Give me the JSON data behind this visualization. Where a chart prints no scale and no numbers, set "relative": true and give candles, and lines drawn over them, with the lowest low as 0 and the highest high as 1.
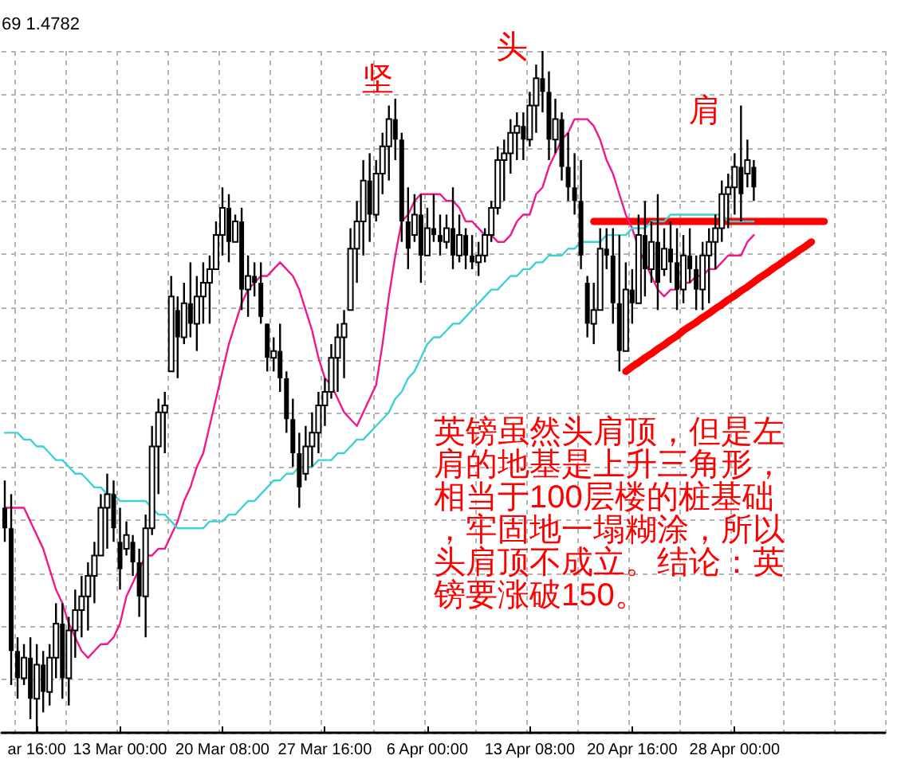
{
  "chart_data": {
    "type": "candlestick",
    "relative": true,
    "grid": true,
    "marker": "none",
    "color": "#000000",
    "annotations": [
      "69 1.4782",
      "坚",
      "头",
      "肩",
      "英镑虽然头肩顶，但是左肩的地基是上升三角形，相当于100层楼的桩基础，牢固地一塌糊涂，所以头肩顶不成立。结论：英镑要涨破150。"
    ],
    "categories": [
      null,
      null,
      null,
      null,
      null,
      "ar 16:00",
      null,
      null,
      null,
      null,
      null,
      null,
      null,
      null,
      null,
      null,
      null,
      null,
      "13 Mar 00:00",
      null,
      null,
      null,
      null,
      null,
      null,
      null,
      null,
      null,
      null,
      null,
      null,
      null,
      null,
      null,
      "20 Mar 08:00",
      null,
      null,
      null,
      null,
      null,
      null,
      null,
      null,
      null,
      null,
      null,
      null,
      null,
      null,
      null,
      "27 Mar 16:00",
      null,
      null,
      null,
      null,
      null,
      null,
      null,
      null,
      null,
      null,
      null,
      null,
      null,
      null,
      null,
      "6 Apr 00:00",
      null,
      null,
      null,
      null,
      null,
      null,
      null,
      null,
      null,
      null,
      null,
      null,
      null,
      null,
      null,
      "13 Apr 08:00",
      null,
      null,
      null,
      null,
      null,
      null,
      null,
      null,
      null,
      null,
      null,
      null,
      null,
      null,
      null,
      "20 Apr 16:00",
      null,
      null,
      null,
      null,
      null,
      null,
      null,
      null,
      null,
      null,
      null,
      null,
      null,
      null,
      null,
      "28 Apr 00:00",
      null,
      null,
      null,
      null,
      null,
      null,
      null,
      null,
      null,
      null,
      null,
      null,
      null,
      null,
      null,
      null,
      null,
      null,
      null,
      null,
      null,
      null,
      null
    ],
    "ohlc": [
      [
        0.33,
        0.37,
        0.28,
        0.3
      ],
      [
        0.3,
        0.35,
        0.07,
        0.12
      ],
      [
        0.12,
        0.14,
        0.05,
        0.08
      ],
      [
        0.08,
        0.13,
        0.07,
        0.11
      ],
      [
        0.11,
        0.14,
        0.02,
        0.05
      ],
      [
        0.05,
        0.13,
        0.0,
        0.1
      ],
      [
        0.1,
        0.12,
        0.03,
        0.06
      ],
      [
        0.06,
        0.13,
        0.04,
        0.11
      ],
      [
        0.11,
        0.19,
        0.08,
        0.16
      ],
      [
        0.16,
        0.19,
        0.05,
        0.08
      ],
      [
        0.08,
        0.17,
        0.04,
        0.15
      ],
      [
        0.15,
        0.21,
        0.11,
        0.18
      ],
      [
        0.18,
        0.23,
        0.14,
        0.2
      ],
      [
        0.2,
        0.25,
        0.15,
        0.23
      ],
      [
        0.23,
        0.28,
        0.19,
        0.26
      ],
      [
        0.26,
        0.35,
        0.26,
        0.33
      ],
      [
        0.33,
        0.38,
        0.27,
        0.35
      ],
      [
        0.35,
        0.37,
        0.28,
        0.3
      ],
      [
        0.28,
        0.33,
        0.21,
        0.24
      ],
      [
        0.27,
        0.31,
        0.26,
        0.29
      ],
      [
        0.28,
        0.29,
        0.23,
        0.25
      ],
      [
        0.25,
        0.27,
        0.17,
        0.2
      ],
      [
        0.2,
        0.32,
        0.14,
        0.3
      ],
      [
        0.3,
        0.45,
        0.29,
        0.42
      ],
      [
        0.42,
        0.49,
        0.35,
        0.47
      ],
      [
        0.47,
        0.5,
        0.41,
        0.48
      ],
      [
        0.53,
        0.67,
        0.53,
        0.64
      ],
      [
        0.62,
        0.64,
        0.52,
        0.58
      ],
      [
        0.58,
        0.66,
        0.57,
        0.63
      ],
      [
        0.63,
        0.69,
        0.58,
        0.6
      ],
      [
        0.6,
        0.67,
        0.56,
        0.64
      ],
      [
        0.64,
        0.69,
        0.6,
        0.66
      ],
      [
        0.66,
        0.7,
        0.6,
        0.68
      ],
      [
        0.68,
        0.75,
        0.68,
        0.73
      ],
      [
        0.73,
        0.8,
        0.7,
        0.77
      ],
      [
        0.77,
        0.79,
        0.69,
        0.72
      ],
      [
        0.72,
        0.76,
        0.72,
        0.75
      ],
      [
        0.75,
        0.77,
        0.62,
        0.65
      ],
      [
        0.65,
        0.7,
        0.61,
        0.67
      ],
      [
        0.67,
        0.69,
        0.64,
        0.66
      ],
      [
        0.66,
        0.69,
        0.6,
        0.61
      ],
      [
        0.6,
        0.6,
        0.53,
        0.55
      ],
      [
        0.55,
        0.58,
        0.53,
        0.56
      ],
      [
        0.56,
        0.6,
        0.5,
        0.52
      ],
      [
        0.52,
        0.53,
        0.44,
        0.46
      ],
      [
        0.46,
        0.49,
        0.39,
        0.41
      ],
      [
        0.41,
        0.44,
        0.33,
        0.36
      ],
      [
        0.38,
        0.45,
        0.37,
        0.42
      ],
      [
        0.42,
        0.47,
        0.39,
        0.44
      ],
      [
        0.44,
        0.5,
        0.41,
        0.48
      ],
      [
        0.48,
        0.52,
        0.45,
        0.5
      ],
      [
        0.5,
        0.57,
        0.49,
        0.55
      ],
      [
        0.55,
        0.6,
        0.5,
        0.58
      ],
      [
        0.58,
        0.62,
        0.52,
        0.6
      ],
      [
        0.62,
        0.74,
        0.62,
        0.71
      ],
      [
        0.71,
        0.78,
        0.66,
        0.75
      ],
      [
        0.75,
        0.84,
        0.7,
        0.81
      ],
      [
        0.81,
        0.85,
        0.72,
        0.76
      ],
      [
        0.76,
        0.84,
        0.75,
        0.82
      ],
      [
        0.82,
        0.88,
        0.79,
        0.86
      ],
      [
        0.86,
        0.92,
        0.81,
        0.9
      ],
      [
        0.9,
        0.93,
        0.84,
        0.87
      ],
      [
        0.87,
        0.88,
        0.72,
        0.75
      ],
      [
        0.75,
        0.8,
        0.68,
        0.71
      ],
      [
        0.73,
        0.79,
        0.72,
        0.76
      ],
      [
        0.76,
        0.79,
        0.66,
        0.7
      ],
      [
        0.7,
        0.77,
        0.7,
        0.74
      ],
      [
        0.74,
        0.79,
        0.72,
        0.73
      ],
      [
        0.73,
        0.76,
        0.7,
        0.72
      ],
      [
        0.72,
        0.76,
        0.71,
        0.74
      ],
      [
        0.74,
        0.8,
        0.68,
        0.7
      ],
      [
        0.7,
        0.76,
        0.69,
        0.73
      ],
      [
        0.73,
        0.74,
        0.68,
        0.7
      ],
      [
        0.7,
        0.73,
        0.68,
        0.69
      ],
      [
        0.69,
        0.72,
        0.67,
        0.7
      ],
      [
        0.7,
        0.74,
        0.69,
        0.73
      ],
      [
        0.73,
        0.78,
        0.72,
        0.77
      ],
      [
        0.77,
        0.86,
        0.76,
        0.84
      ],
      [
        0.84,
        0.87,
        0.78,
        0.85
      ],
      [
        0.85,
        0.9,
        0.82,
        0.88
      ],
      [
        0.88,
        0.91,
        0.84,
        0.89
      ],
      [
        0.89,
        0.91,
        0.84,
        0.87
      ],
      [
        0.87,
        0.94,
        0.86,
        0.92
      ],
      [
        0.92,
        0.98,
        0.88,
        0.96
      ],
      [
        0.96,
        1.0,
        0.91,
        0.94
      ],
      [
        0.94,
        0.97,
        0.84,
        0.87
      ],
      [
        0.87,
        0.93,
        0.85,
        0.9
      ],
      [
        0.9,
        0.91,
        0.81,
        0.83
      ],
      [
        0.83,
        0.88,
        0.78,
        0.8
      ],
      [
        0.8,
        0.85,
        0.76,
        0.78
      ],
      [
        0.78,
        0.84,
        0.68,
        0.7
      ],
      [
        0.66,
        0.67,
        0.58,
        0.6
      ],
      [
        0.6,
        0.66,
        0.57,
        0.62
      ],
      [
        0.62,
        0.74,
        0.62,
        0.71
      ],
      [
        0.71,
        0.74,
        0.68,
        0.7
      ],
      [
        0.7,
        0.74,
        0.6,
        0.63
      ],
      [
        0.63,
        0.73,
        0.53,
        0.56
      ],
      [
        0.56,
        0.69,
        0.56,
        0.65
      ],
      [
        0.65,
        0.68,
        0.6,
        0.63
      ],
      [
        0.63,
        0.76,
        0.63,
        0.73
      ],
      [
        0.73,
        0.78,
        0.64,
        0.68
      ],
      [
        0.68,
        0.75,
        0.66,
        0.72
      ],
      [
        0.72,
        0.79,
        0.62,
        0.66
      ],
      [
        0.68,
        0.74,
        0.67,
        0.71
      ],
      [
        0.71,
        0.75,
        0.66,
        0.69
      ],
      [
        0.69,
        0.74,
        0.62,
        0.65
      ],
      [
        0.65,
        0.73,
        0.63,
        0.7
      ],
      [
        0.7,
        0.74,
        0.66,
        0.68
      ],
      [
        0.68,
        0.7,
        0.62,
        0.65
      ],
      [
        0.65,
        0.72,
        0.62,
        0.7
      ],
      [
        0.7,
        0.74,
        0.63,
        0.72
      ],
      [
        0.72,
        0.76,
        0.68,
        0.74
      ],
      [
        0.74,
        0.81,
        0.72,
        0.79
      ],
      [
        0.79,
        0.82,
        0.74,
        0.8
      ],
      [
        0.8,
        0.85,
        0.76,
        0.83
      ],
      [
        0.83,
        0.92,
        0.75,
        0.79
      ],
      [
        0.82,
        0.87,
        0.8,
        0.84
      ],
      [
        0.83,
        0.84,
        0.78,
        0.8
      ],
      null,
      null,
      null,
      null,
      null,
      null,
      null,
      null,
      null,
      null,
      null,
      null,
      null,
      null,
      null,
      null,
      null,
      null,
      null,
      null
    ],
    "series": [
      {
        "type": "line",
        "color": "#f0188c",
        "values": [
          0.33,
          0.33,
          0.33,
          0.33,
          0.31,
          0.29,
          0.27,
          0.24,
          0.21,
          0.19,
          0.16,
          0.14,
          0.12,
          0.11,
          0.12,
          0.13,
          0.13,
          0.14,
          0.16,
          0.2,
          0.22,
          0.24,
          0.26,
          0.26,
          0.27,
          0.27,
          0.29,
          0.31,
          0.34,
          0.36,
          0.39,
          0.41,
          0.45,
          0.49,
          0.53,
          0.57,
          0.6,
          0.63,
          0.65,
          0.66,
          0.67,
          0.67,
          0.68,
          0.69,
          0.68,
          0.67,
          0.65,
          0.62,
          0.59,
          0.55,
          0.52,
          0.51,
          0.49,
          0.47,
          0.46,
          0.45,
          0.47,
          0.49,
          0.51,
          0.57,
          0.64,
          0.7,
          0.75,
          0.76,
          0.78,
          0.79,
          0.79,
          0.79,
          0.79,
          0.78,
          0.78,
          0.77,
          0.75,
          0.75,
          0.74,
          0.73,
          0.73,
          0.72,
          0.72,
          0.73,
          0.75,
          0.76,
          0.76,
          0.79,
          0.8,
          0.83,
          0.85,
          0.87,
          0.88,
          0.9,
          0.9,
          0.9,
          0.89,
          0.87,
          0.84,
          0.82,
          0.79,
          0.76,
          0.74,
          0.71,
          0.69,
          0.67,
          0.65,
          0.64,
          0.65,
          0.65,
          0.66,
          0.66,
          0.67,
          0.67,
          0.68,
          0.68,
          0.69,
          0.7,
          0.7,
          0.7,
          0.72,
          0.73,
          null,
          null,
          null,
          null,
          null,
          null,
          null,
          null,
          null,
          null,
          null,
          null,
          null,
          null,
          null,
          null,
          null,
          null,
          null,
          null
        ]
      },
      {
        "type": "line",
        "color": "#3cd2d2",
        "values": [
          0.44,
          0.44,
          0.44,
          0.43,
          0.43,
          0.42,
          0.42,
          0.41,
          0.4,
          0.4,
          0.39,
          0.38,
          0.38,
          0.37,
          0.36,
          0.36,
          0.35,
          0.35,
          0.34,
          0.34,
          0.34,
          0.34,
          0.34,
          0.33,
          0.32,
          0.32,
          0.31,
          0.3,
          0.3,
          0.3,
          0.3,
          0.3,
          0.31,
          0.31,
          0.31,
          0.32,
          0.32,
          0.33,
          0.34,
          0.34,
          0.35,
          0.36,
          0.37,
          0.37,
          0.38,
          0.38,
          0.39,
          0.39,
          0.39,
          0.4,
          0.4,
          0.4,
          0.41,
          0.41,
          0.42,
          0.43,
          0.43,
          0.44,
          0.45,
          0.46,
          0.47,
          0.49,
          0.5,
          0.52,
          0.53,
          0.55,
          0.57,
          0.58,
          0.58,
          0.59,
          0.6,
          0.6,
          0.61,
          0.62,
          0.63,
          0.64,
          0.65,
          0.65,
          0.66,
          0.67,
          0.67,
          0.68,
          0.68,
          0.69,
          0.69,
          0.7,
          0.7,
          0.7,
          0.71,
          0.71,
          0.72,
          0.72,
          0.72,
          0.72,
          0.73,
          0.73,
          0.73,
          0.73,
          0.74,
          0.74,
          0.74,
          0.75,
          0.75,
          0.75,
          0.76,
          0.76,
          0.76,
          0.76,
          0.76,
          0.76,
          0.76,
          0.76,
          0.76,
          0.75,
          0.75,
          0.75,
          0.75,
          0.75,
          null,
          null,
          null,
          null,
          null,
          null,
          null,
          null,
          null,
          null,
          null,
          null,
          null,
          null,
          null,
          null,
          null,
          null,
          null,
          null
        ]
      },
      {
        "type": "line",
        "color": "#ff0000",
        "values": [
          null,
          null,
          null,
          null,
          null,
          null,
          null,
          null,
          null,
          null,
          null,
          null,
          null,
          null,
          null,
          null,
          null,
          null,
          null,
          null,
          null,
          null,
          null,
          null,
          null,
          null,
          null,
          null,
          null,
          null,
          null,
          null,
          null,
          null,
          null,
          null,
          null,
          null,
          null,
          null,
          null,
          null,
          null,
          null,
          null,
          null,
          null,
          null,
          null,
          null,
          null,
          null,
          null,
          null,
          null,
          null,
          null,
          null,
          null,
          null,
          null,
          null,
          null,
          null,
          null,
          null,
          null,
          null,
          null,
          null,
          null,
          null,
          null,
          null,
          null,
          null,
          null,
          null,
          null,
          null,
          null,
          null,
          null,
          null,
          null,
          null,
          null,
          null,
          null,
          null,
          null,
          null,
          0.75,
          0.75,
          0.75,
          0.75,
          0.75,
          0.75,
          0.75,
          0.75,
          0.75,
          0.75,
          0.75,
          0.75,
          0.75,
          0.75,
          0.75,
          0.75,
          0.75,
          0.75,
          0.75,
          0.75,
          0.75,
          0.75,
          0.75,
          0.75,
          0.75,
          0.75,
          0.75,
          0.75,
          0.75,
          0.75,
          0.75,
          0.75,
          0.75,
          0.75,
          0.75,
          0.75,
          0.75,
          null,
          null,
          null,
          null,
          null,
          null,
          null,
          null,
          null
        ]
      },
      {
        "type": "line",
        "color": "#ff0000",
        "values": [
          null,
          null,
          null,
          null,
          null,
          null,
          null,
          null,
          null,
          null,
          null,
          null,
          null,
          null,
          null,
          null,
          null,
          null,
          null,
          null,
          null,
          null,
          null,
          null,
          null,
          null,
          null,
          null,
          null,
          null,
          null,
          null,
          null,
          null,
          null,
          null,
          null,
          null,
          null,
          null,
          null,
          null,
          null,
          null,
          null,
          null,
          null,
          null,
          null,
          null,
          null,
          null,
          null,
          null,
          null,
          null,
          null,
          null,
          null,
          null,
          null,
          null,
          null,
          null,
          null,
          null,
          null,
          null,
          null,
          null,
          null,
          null,
          null,
          null,
          null,
          null,
          null,
          null,
          null,
          null,
          null,
          null,
          null,
          null,
          null,
          null,
          null,
          null,
          null,
          null,
          null,
          null,
          null,
          null,
          null,
          null,
          null,
          0.53,
          0.537,
          0.543,
          0.55,
          0.556,
          0.563,
          0.569,
          0.576,
          0.582,
          0.59,
          0.596,
          0.602,
          0.609,
          0.615,
          0.622,
          0.628,
          0.635,
          0.641,
          0.648,
          0.654,
          0.661,
          0.668,
          0.674,
          0.681,
          0.687,
          0.694,
          0.7,
          0.707,
          0.713,
          0.72,
          null,
          null,
          null,
          null,
          null,
          null,
          null,
          null,
          null,
          null,
          null
        ]
      }
    ]
  }
}
